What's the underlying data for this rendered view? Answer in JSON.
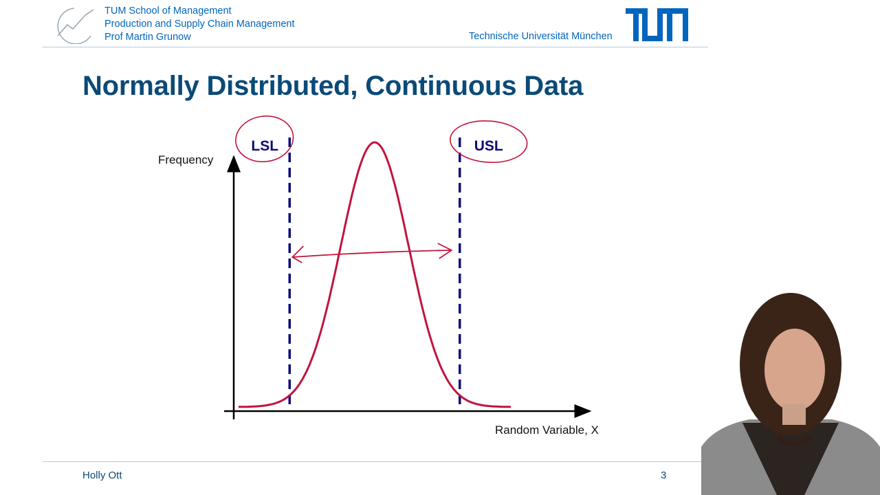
{
  "header": {
    "lines": [
      "TUM School of Management",
      "Production and Supply Chain Management",
      "Prof Martin Grunow"
    ],
    "university": "Technische Universität München",
    "left_logo_icon": "rising-trend-logo-icon",
    "right_logo_icon": "tum-logo-icon",
    "brand_color": "#0065bd"
  },
  "slide": {
    "title": "Normally Distributed, Continuous Data",
    "title_color": "#0a4a78"
  },
  "chart_data": {
    "type": "line",
    "ylabel": "Frequency",
    "xlabel": "Random Variable, X",
    "series": [
      {
        "x": [
          -4,
          -3.5,
          -3,
          -2.5,
          -2,
          -1.5,
          -1,
          -0.5,
          0,
          0.5,
          1,
          1.5,
          2,
          2.5,
          3,
          3.5,
          4
        ],
        "values": [
          0.0001,
          0.0009,
          0.0044,
          0.0175,
          0.054,
          0.1295,
          0.242,
          0.3521,
          0.3989,
          0.3521,
          0.242,
          0.1295,
          0.054,
          0.0175,
          0.0044,
          0.0009,
          0.0001
        ],
        "color": "#c0143c"
      }
    ],
    "spec_limits": [
      {
        "label": "LSL",
        "x": -2.5
      },
      {
        "label": "USL",
        "x": 2.5
      }
    ],
    "limit_color": "#0b0b7a",
    "annotation_color": "#c0143c",
    "annotation": "double-arrow between LSL and USL"
  },
  "footer": {
    "name": "Holly Ott",
    "page": "3"
  }
}
